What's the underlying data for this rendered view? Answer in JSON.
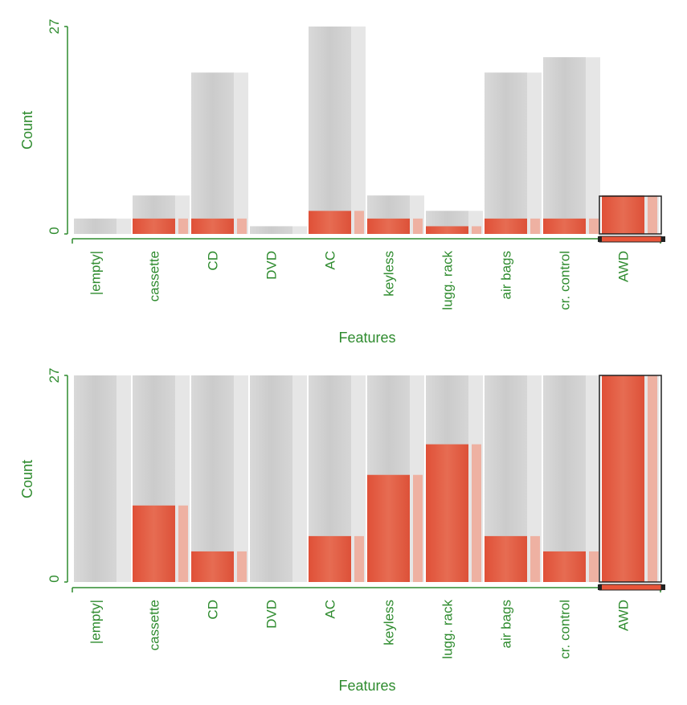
{
  "chart_data": [
    {
      "type": "bar",
      "title": "",
      "xlabel": "Features",
      "ylabel": "Count",
      "ylim": [
        0,
        27
      ],
      "y_tick_labels": [
        "0",
        "27"
      ],
      "categories": [
        "|empty|",
        "cassette",
        "CD",
        "DVD",
        "AC",
        "keyless",
        "lugg. rack",
        "air bags",
        "cr. control",
        "AWD"
      ],
      "selected_category": "AWD",
      "series": [
        {
          "name": "total",
          "values": [
            2,
            5,
            21,
            1,
            27,
            5,
            3,
            21,
            23,
            5
          ]
        },
        {
          "name": "highlighted",
          "values": [
            0,
            2,
            2,
            0,
            3,
            2,
            1,
            2,
            2,
            5
          ]
        }
      ]
    },
    {
      "type": "bar",
      "title": "",
      "xlabel": "Features",
      "ylabel": "Count",
      "ylim": [
        0,
        27
      ],
      "y_tick_labels": [
        "0",
        "27"
      ],
      "categories": [
        "|empty|",
        "cassette",
        "CD",
        "DVD",
        "AC",
        "keyless",
        "lugg. rack",
        "air bags",
        "cr. control",
        "AWD"
      ],
      "selected_category": "AWD",
      "series": [
        {
          "name": "total",
          "values": [
            27,
            27,
            27,
            27,
            27,
            27,
            27,
            27,
            27,
            27
          ]
        },
        {
          "name": "highlighted",
          "values": [
            0,
            10,
            4,
            0,
            6,
            14,
            18,
            6,
            4,
            27
          ]
        }
      ]
    }
  ],
  "colors": {
    "axis": "#2e8b2e",
    "highlight": "#e8553a",
    "highlight_light": "#f19a85",
    "bar_gray": "#cfcfcf",
    "bar_gray_light": "#e6e6e6",
    "selection_border": "#222222"
  }
}
